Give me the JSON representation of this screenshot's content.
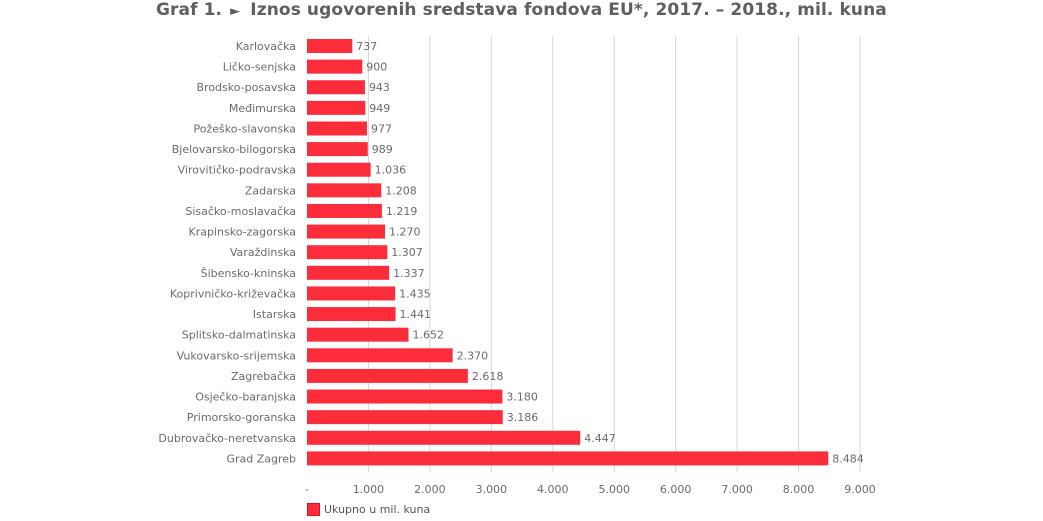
{
  "title": {
    "prefix": "Graf 1.",
    "text": "Iznos ugovorenih sredstava fondova EU*, 2017. – 2018., mil. kuna"
  },
  "legend": {
    "label": "Ukupno u mil. kuna"
  },
  "colors": {
    "bar": "#fb2d3a",
    "grid": "#d6d6d6",
    "axis_text": "#6b6b6b",
    "label_text": "#6b6b6b"
  },
  "chart_data": {
    "type": "bar",
    "orientation": "horizontal",
    "title": "Iznos ugovorenih sredstava fondova EU*, 2017. – 2018., mil. kuna",
    "categories": [
      "Karlovačka",
      "Ličko-senjska",
      "Brodsko-posavska",
      "Međimurska",
      "Požeško-slavonska",
      "Bjelovarsko-bilogorska",
      "Virovitičko-podravska",
      "Zadarska",
      "Sisačko-moslavačka",
      "Krapinsko-zagorska",
      "Varaždinska",
      "Šibensko-kninska",
      "Koprivničko-križevačka",
      "Istarska",
      "Splitsko-dalmatinska",
      "Vukovarsko-srijemska",
      "Zagrebačka",
      "Osječko-baranjska",
      "Primorsko-goranska",
      "Dubrovačko-neretvanska",
      "Grad Zagreb"
    ],
    "series": [
      {
        "name": "Ukupno u mil. kuna",
        "values": [
          737,
          900,
          943,
          949,
          977,
          989,
          1036,
          1208,
          1219,
          1270,
          1307,
          1337,
          1435,
          1441,
          1652,
          2370,
          2618,
          3180,
          3186,
          4447,
          8484
        ],
        "labels": [
          "737",
          "900",
          "943",
          "949",
          "977",
          "989",
          "1.036",
          "1.208",
          "1.219",
          "1.270",
          "1.307",
          "1.337",
          "1.435",
          "1.441",
          "1.652",
          "2.370",
          "2.618",
          "3.180",
          "3.186",
          "4.447",
          "8.484"
        ]
      }
    ],
    "xlim": [
      0,
      9000
    ],
    "xticks": [
      0,
      1000,
      2000,
      3000,
      4000,
      5000,
      6000,
      7000,
      8000,
      9000
    ],
    "xtick_labels": [
      "-",
      "1.000",
      "2.000",
      "3.000",
      "4.000",
      "5.000",
      "6.000",
      "7.000",
      "8.000",
      "9.000"
    ],
    "grid": true,
    "legend_position": "bottom-left"
  }
}
